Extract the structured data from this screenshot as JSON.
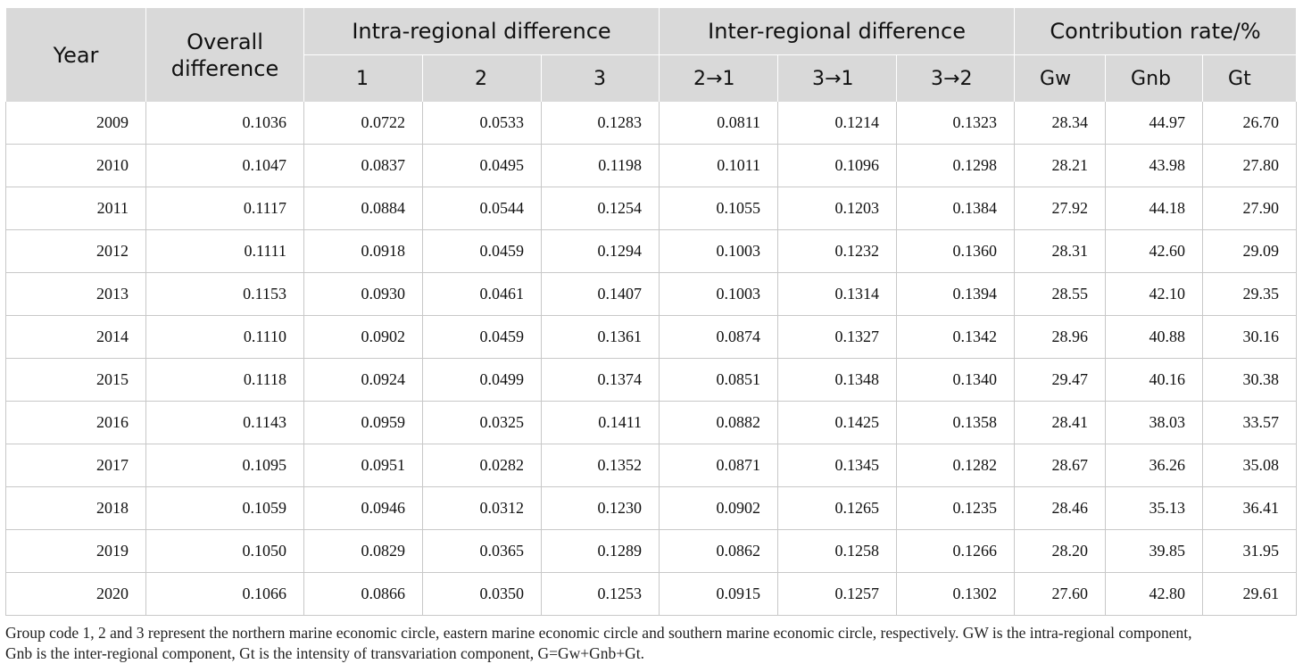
{
  "header": {
    "year": "Year",
    "overall_line1": "Overall",
    "overall_line2": "difference",
    "intra": "Intra-regional difference",
    "inter": "Inter-regional difference",
    "contribution": "Contribution rate/%",
    "sub": [
      "1",
      "2",
      "3",
      "2→1",
      "3→1",
      "3→2",
      "Gw",
      "Gnb",
      "Gt"
    ]
  },
  "rows": [
    [
      "2009",
      "0.1036",
      "0.0722",
      "0.0533",
      "0.1283",
      "0.0811",
      "0.1214",
      "0.1323",
      "28.34",
      "44.97",
      "26.70"
    ],
    [
      "2010",
      "0.1047",
      "0.0837",
      "0.0495",
      "0.1198",
      "0.1011",
      "0.1096",
      "0.1298",
      "28.21",
      "43.98",
      "27.80"
    ],
    [
      "2011",
      "0.1117",
      "0.0884",
      "0.0544",
      "0.1254",
      "0.1055",
      "0.1203",
      "0.1384",
      "27.92",
      "44.18",
      "27.90"
    ],
    [
      "2012",
      "0.1111",
      "0.0918",
      "0.0459",
      "0.1294",
      "0.1003",
      "0.1232",
      "0.1360",
      "28.31",
      "42.60",
      "29.09"
    ],
    [
      "2013",
      "0.1153",
      "0.0930",
      "0.0461",
      "0.1407",
      "0.1003",
      "0.1314",
      "0.1394",
      "28.55",
      "42.10",
      "29.35"
    ],
    [
      "2014",
      "0.1110",
      "0.0902",
      "0.0459",
      "0.1361",
      "0.0874",
      "0.1327",
      "0.1342",
      "28.96",
      "40.88",
      "30.16"
    ],
    [
      "2015",
      "0.1118",
      "0.0924",
      "0.0499",
      "0.1374",
      "0.0851",
      "0.1348",
      "0.1340",
      "29.47",
      "40.16",
      "30.38"
    ],
    [
      "2016",
      "0.1143",
      "0.0959",
      "0.0325",
      "0.1411",
      "0.0882",
      "0.1425",
      "0.1358",
      "28.41",
      "38.03",
      "33.57"
    ],
    [
      "2017",
      "0.1095",
      "0.0951",
      "0.0282",
      "0.1352",
      "0.0871",
      "0.1345",
      "0.1282",
      "28.67",
      "36.26",
      "35.08"
    ],
    [
      "2018",
      "0.1059",
      "0.0946",
      "0.0312",
      "0.1230",
      "0.0902",
      "0.1265",
      "0.1235",
      "28.46",
      "35.13",
      "36.41"
    ],
    [
      "2019",
      "0.1050",
      "0.0829",
      "0.0365",
      "0.1289",
      "0.0862",
      "0.1258",
      "0.1266",
      "28.20",
      "39.85",
      "31.95"
    ],
    [
      "2020",
      "0.1066",
      "0.0866",
      "0.0350",
      "0.1253",
      "0.0915",
      "0.1257",
      "0.1302",
      "27.60",
      "42.80",
      "29.61"
    ]
  ],
  "footnote_line1": "Group code 1, 2 and 3 represent the northern marine economic circle, eastern marine economic circle and southern marine economic circle, respectively. GW is the intra-regional component,",
  "footnote_line2": "Gnb is the inter-regional component, Gt is the intensity of transvariation component, G=Gw+Gnb+Gt."
}
